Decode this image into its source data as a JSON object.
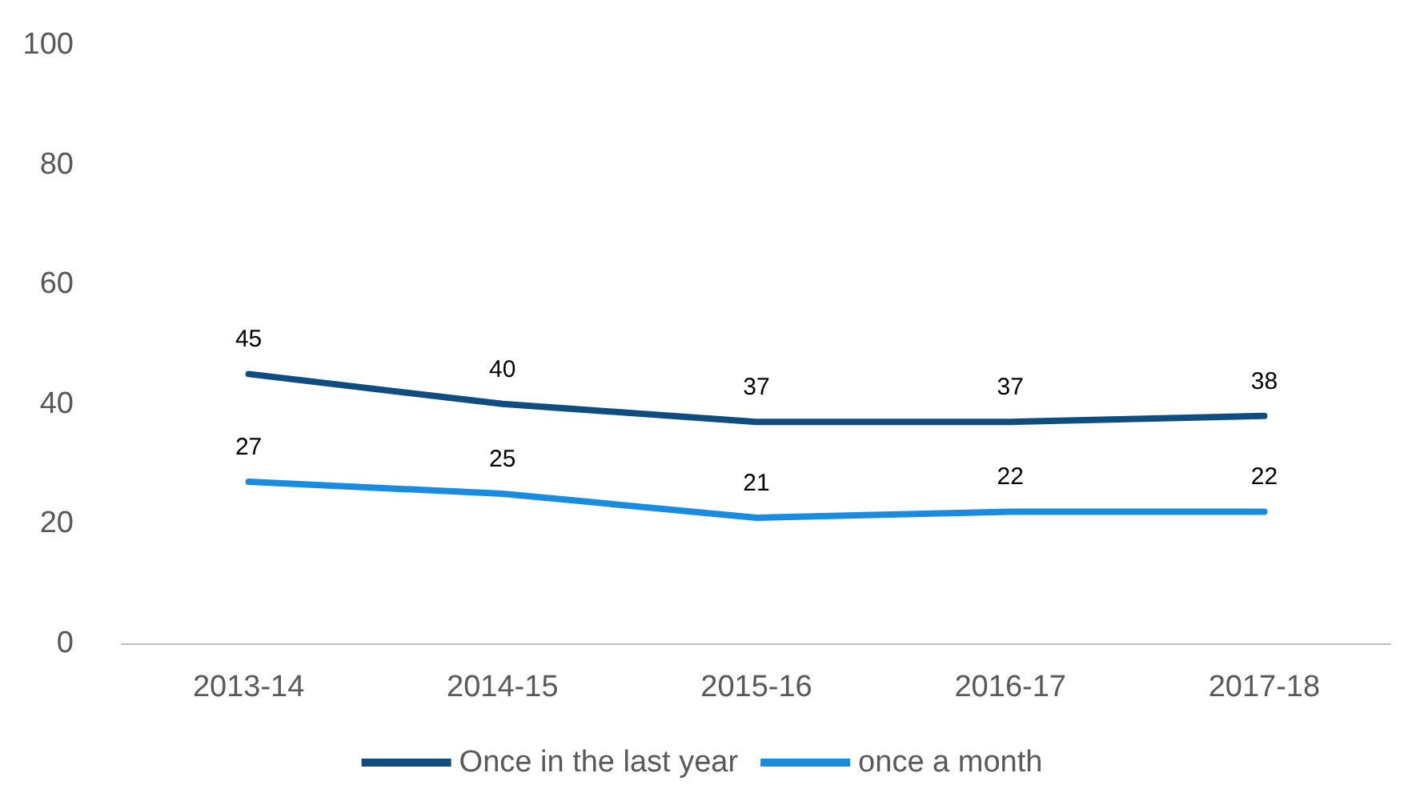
{
  "chart_data": {
    "type": "line",
    "categories": [
      "2013-14",
      "2014-15",
      "2015-16",
      "2016-17",
      "2017-18"
    ],
    "series": [
      {
        "name": "Once in the last year",
        "color": "#0f4c7f",
        "values": [
          45,
          40,
          37,
          37,
          38
        ]
      },
      {
        "name": "once a month",
        "color": "#1a8ce0",
        "values": [
          27,
          25,
          21,
          22,
          22
        ]
      }
    ],
    "ylim": [
      0,
      100
    ],
    "yticks": [
      0,
      20,
      40,
      60,
      80,
      100
    ],
    "grid": false,
    "legend": "bottom",
    "data_labels": true,
    "marker": "none",
    "line_style": "solid"
  }
}
